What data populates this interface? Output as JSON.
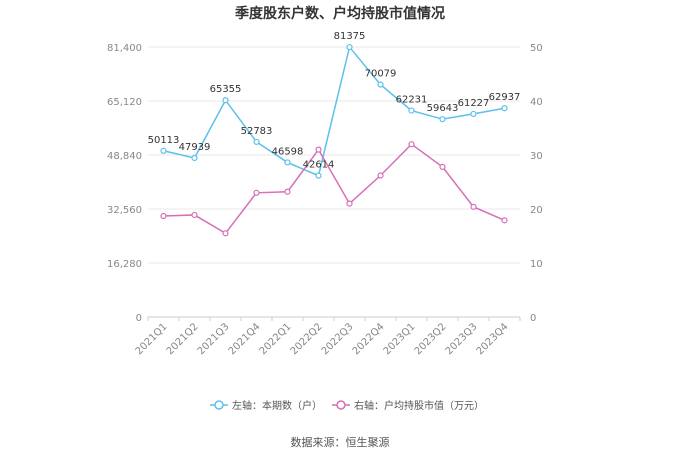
{
  "chart_data": {
    "type": "line",
    "title": "季度股东户数、户均持股市值情况",
    "categories": [
      "2021Q1",
      "2021Q2",
      "2021Q3",
      "2021Q4",
      "2022Q1",
      "2022Q2",
      "2022Q3",
      "2022Q4",
      "2023Q1",
      "2023Q2",
      "2023Q3",
      "2023Q4"
    ],
    "left_axis": {
      "ticks": [
        "0",
        "16,280",
        "32,560",
        "48,840",
        "65,120",
        "81,400"
      ],
      "range": [
        0,
        81400
      ]
    },
    "right_axis": {
      "ticks": [
        "0",
        "10",
        "20",
        "30",
        "40",
        "50"
      ],
      "range": [
        0,
        50
      ]
    },
    "series": [
      {
        "name": "左轴：本期数（户）",
        "axis": "left",
        "color": "#5bc0eb",
        "values": [
          50113,
          47939,
          65355,
          52783,
          46598,
          42614,
          81375,
          70079,
          62231,
          59643,
          61227,
          62937
        ],
        "labels": [
          "50113",
          "47939",
          "65355",
          "52783",
          "46598",
          "42614",
          "81375",
          "70079",
          "62231",
          "59643",
          "61227",
          "62937"
        ]
      },
      {
        "name": "右轴：户均持股市值（万元）",
        "axis": "right",
        "color": "#d66fb5",
        "values": [
          18.7,
          18.9,
          15.5,
          23.0,
          23.2,
          31.0,
          21.0,
          26.2,
          32.0,
          27.8,
          20.4,
          17.9
        ]
      }
    ],
    "grid": true,
    "legend_position": "bottom"
  },
  "source_text": "数据来源：恒生聚源"
}
